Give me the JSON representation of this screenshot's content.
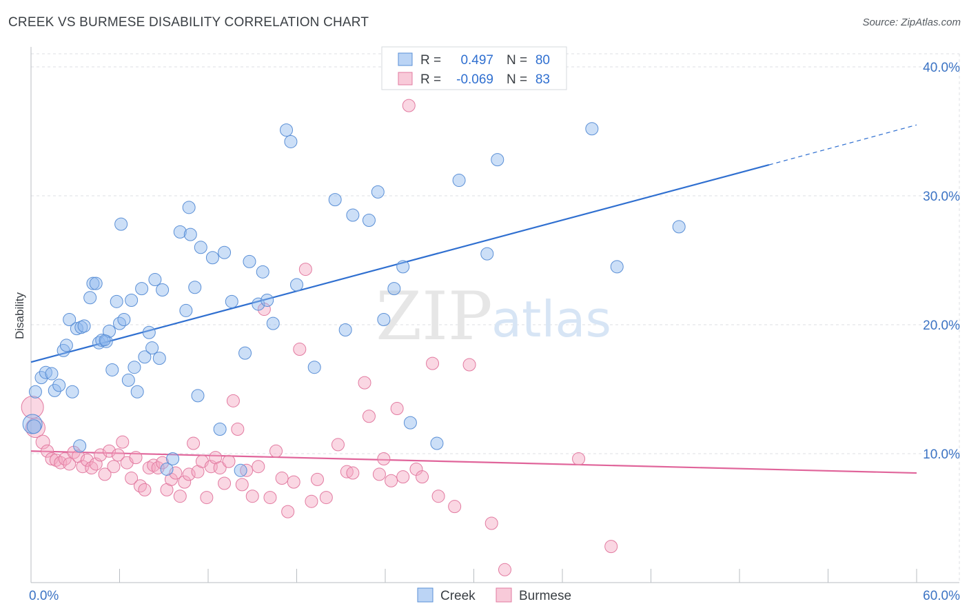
{
  "title": "CREEK VS BURMESE DISABILITY CORRELATION CHART",
  "source": "Source: ZipAtlas.com",
  "watermark": {
    "zip": "ZIP",
    "atlas": "atlas"
  },
  "legend_top": [
    {
      "r_label": "R =",
      "r_value": "0.497",
      "n_label": "N =",
      "n_value": "80",
      "color": "#8db8ee"
    },
    {
      "r_label": "R =",
      "r_value": "-0.069",
      "n_label": "N =",
      "n_value": "83",
      "color": "#f4a6c0"
    }
  ],
  "legend_bottom": [
    {
      "label": "Creek",
      "color": "#8db8ee"
    },
    {
      "label": "Burmese",
      "color": "#f4a6c0"
    }
  ],
  "chart_data": {
    "type": "scatter",
    "xlabel": "",
    "ylabel": "Disability",
    "xlim": [
      0,
      60
    ],
    "ylim": [
      0,
      40
    ],
    "x_tick_labels": [
      "0.0%",
      "60.0%"
    ],
    "y_tick_labels": [
      "10.0%",
      "20.0%",
      "30.0%",
      "40.0%"
    ],
    "y_ticks": [
      10,
      20,
      30,
      40
    ],
    "grid": true,
    "legend_position": "top-center",
    "series": [
      {
        "name": "Creek",
        "color": "#8db8ee",
        "stroke": "#5a8fd6",
        "trend": {
          "x0": 0,
          "y0": 17.1,
          "x1": 50,
          "y1": 32.4,
          "dash_to": 60,
          "dash_y": 35.5,
          "color": "#2f6fd0"
        },
        "points": [
          [
            0.3,
            14.8,
            9
          ],
          [
            0.7,
            15.9,
            9
          ],
          [
            1.0,
            16.3,
            9
          ],
          [
            1.4,
            16.2,
            9
          ],
          [
            1.6,
            14.9,
            9
          ],
          [
            1.9,
            15.3,
            9
          ],
          [
            2.2,
            18.0,
            9
          ],
          [
            2.4,
            18.4,
            9
          ],
          [
            2.6,
            20.4,
            9
          ],
          [
            2.8,
            14.8,
            9
          ],
          [
            3.1,
            19.7,
            9
          ],
          [
            3.4,
            19.8,
            9
          ],
          [
            3.6,
            19.9,
            9
          ],
          [
            3.3,
            10.6,
            9
          ],
          [
            4.0,
            22.1,
            9
          ],
          [
            4.2,
            23.2,
            9
          ],
          [
            4.4,
            23.2,
            9
          ],
          [
            4.6,
            18.6,
            9
          ],
          [
            4.8,
            18.8,
            9
          ],
          [
            5.1,
            18.7,
            9
          ],
          [
            5.3,
            19.5,
            9
          ],
          [
            5.5,
            16.5,
            9
          ],
          [
            5.8,
            21.8,
            9
          ],
          [
            6.0,
            20.1,
            9
          ],
          [
            6.1,
            27.8,
            9
          ],
          [
            6.3,
            20.4,
            9
          ],
          [
            6.6,
            15.7,
            9
          ],
          [
            6.8,
            21.9,
            9
          ],
          [
            7.0,
            16.7,
            9
          ],
          [
            7.2,
            14.8,
            9
          ],
          [
            7.5,
            22.8,
            9
          ],
          [
            7.7,
            17.5,
            9
          ],
          [
            8.0,
            19.4,
            9
          ],
          [
            8.2,
            18.2,
            9
          ],
          [
            8.4,
            23.5,
            9
          ],
          [
            8.7,
            17.4,
            9
          ],
          [
            8.9,
            22.7,
            9
          ],
          [
            9.2,
            8.8,
            9
          ],
          [
            9.6,
            9.6,
            9
          ],
          [
            10.1,
            27.2,
            9
          ],
          [
            10.5,
            21.1,
            9
          ],
          [
            10.7,
            29.1,
            9
          ],
          [
            10.8,
            27.0,
            9
          ],
          [
            11.1,
            22.9,
            9
          ],
          [
            11.3,
            14.5,
            9
          ],
          [
            11.5,
            26.0,
            9
          ],
          [
            12.3,
            25.2,
            9
          ],
          [
            12.8,
            11.9,
            9
          ],
          [
            13.1,
            25.6,
            9
          ],
          [
            13.6,
            21.8,
            9
          ],
          [
            14.2,
            8.7,
            9
          ],
          [
            14.5,
            17.8,
            9
          ],
          [
            14.8,
            24.9,
            9
          ],
          [
            15.4,
            21.6,
            9
          ],
          [
            15.7,
            24.1,
            9
          ],
          [
            16.0,
            21.9,
            9
          ],
          [
            16.4,
            20.1,
            9
          ],
          [
            17.3,
            35.1,
            9
          ],
          [
            17.6,
            34.2,
            9
          ],
          [
            18.0,
            23.1,
            9
          ],
          [
            19.2,
            16.7,
            9
          ],
          [
            20.6,
            29.7,
            9
          ],
          [
            21.3,
            19.6,
            9
          ],
          [
            21.8,
            28.5,
            9
          ],
          [
            22.9,
            28.1,
            9
          ],
          [
            23.5,
            30.3,
            9
          ],
          [
            23.9,
            20.4,
            9
          ],
          [
            24.6,
            22.8,
            9
          ],
          [
            25.2,
            24.5,
            9
          ],
          [
            25.7,
            12.4,
            9
          ],
          [
            27.5,
            10.8,
            9
          ],
          [
            29.0,
            31.2,
            9
          ],
          [
            30.9,
            25.5,
            9
          ],
          [
            31.6,
            32.8,
            9
          ],
          [
            38.0,
            35.2,
            9
          ],
          [
            39.7,
            24.5,
            9
          ],
          [
            43.9,
            27.6,
            9
          ],
          [
            0.1,
            12.3,
            14
          ],
          [
            0.2,
            12.1,
            10
          ],
          [
            5.0,
            18.8,
            8
          ]
        ]
      },
      {
        "name": "Burmese",
        "color": "#f4a6c0",
        "stroke": "#e27aa0",
        "trend": {
          "x0": 0,
          "y0": 10.2,
          "x1": 60,
          "y1": 8.5,
          "color": "#e0649a"
        },
        "points": [
          [
            0.1,
            13.6,
            16
          ],
          [
            0.3,
            12.0,
            14
          ],
          [
            0.8,
            10.9,
            10
          ],
          [
            1.1,
            10.2,
            9
          ],
          [
            1.4,
            9.6,
            9
          ],
          [
            1.7,
            9.5,
            9
          ],
          [
            2.0,
            9.3,
            9
          ],
          [
            2.3,
            9.6,
            9
          ],
          [
            2.6,
            9.2,
            9
          ],
          [
            2.9,
            10.1,
            9
          ],
          [
            3.2,
            9.8,
            9
          ],
          [
            3.5,
            9.0,
            9
          ],
          [
            3.8,
            9.5,
            9
          ],
          [
            4.1,
            8.9,
            9
          ],
          [
            4.4,
            9.2,
            9
          ],
          [
            4.7,
            9.9,
            9
          ],
          [
            5.0,
            8.4,
            9
          ],
          [
            5.3,
            10.2,
            9
          ],
          [
            5.6,
            9.0,
            9
          ],
          [
            5.9,
            9.9,
            9
          ],
          [
            6.2,
            10.9,
            9
          ],
          [
            6.5,
            9.3,
            9
          ],
          [
            6.8,
            8.1,
            9
          ],
          [
            7.1,
            9.7,
            9
          ],
          [
            7.4,
            7.5,
            9
          ],
          [
            7.7,
            7.2,
            9
          ],
          [
            8.0,
            8.9,
            9
          ],
          [
            8.3,
            9.1,
            9
          ],
          [
            8.6,
            8.9,
            9
          ],
          [
            8.9,
            9.3,
            9
          ],
          [
            9.2,
            7.2,
            9
          ],
          [
            9.5,
            8.0,
            9
          ],
          [
            9.8,
            8.5,
            9
          ],
          [
            10.1,
            6.7,
            9
          ],
          [
            10.4,
            7.8,
            9
          ],
          [
            10.7,
            8.4,
            9
          ],
          [
            11.0,
            10.8,
            9
          ],
          [
            11.3,
            8.6,
            9
          ],
          [
            11.6,
            9.4,
            9
          ],
          [
            11.9,
            6.6,
            9
          ],
          [
            12.2,
            9.0,
            9
          ],
          [
            12.5,
            9.7,
            9
          ],
          [
            12.8,
            8.9,
            9
          ],
          [
            13.1,
            7.7,
            9
          ],
          [
            13.4,
            9.4,
            9
          ],
          [
            13.7,
            14.1,
            9
          ],
          [
            14.0,
            11.9,
            9
          ],
          [
            14.3,
            7.6,
            9
          ],
          [
            14.6,
            8.7,
            9
          ],
          [
            15.0,
            6.7,
            9
          ],
          [
            15.4,
            9.0,
            9
          ],
          [
            15.8,
            21.2,
            9
          ],
          [
            16.2,
            6.6,
            9
          ],
          [
            16.6,
            10.2,
            9
          ],
          [
            17.0,
            8.1,
            9
          ],
          [
            17.4,
            5.5,
            9
          ],
          [
            17.8,
            7.8,
            9
          ],
          [
            18.2,
            18.1,
            9
          ],
          [
            18.6,
            24.3,
            9
          ],
          [
            19.0,
            6.3,
            9
          ],
          [
            19.4,
            8.0,
            9
          ],
          [
            20.0,
            6.6,
            9
          ],
          [
            20.8,
            10.7,
            9
          ],
          [
            21.4,
            8.6,
            9
          ],
          [
            21.8,
            8.5,
            9
          ],
          [
            22.6,
            15.5,
            9
          ],
          [
            22.9,
            12.9,
            9
          ],
          [
            23.6,
            8.4,
            9
          ],
          [
            23.9,
            9.6,
            9
          ],
          [
            24.4,
            7.9,
            9
          ],
          [
            24.8,
            13.5,
            9
          ],
          [
            25.2,
            8.2,
            9
          ],
          [
            25.6,
            37.0,
            9
          ],
          [
            26.1,
            8.8,
            9
          ],
          [
            26.5,
            8.2,
            9
          ],
          [
            27.2,
            17.0,
            9
          ],
          [
            27.6,
            6.7,
            9
          ],
          [
            28.7,
            5.9,
            9
          ],
          [
            29.7,
            16.9,
            9
          ],
          [
            31.2,
            4.6,
            9
          ],
          [
            32.1,
            1.0,
            9
          ],
          [
            37.1,
            9.6,
            9
          ],
          [
            39.3,
            2.8,
            9
          ]
        ]
      }
    ]
  }
}
